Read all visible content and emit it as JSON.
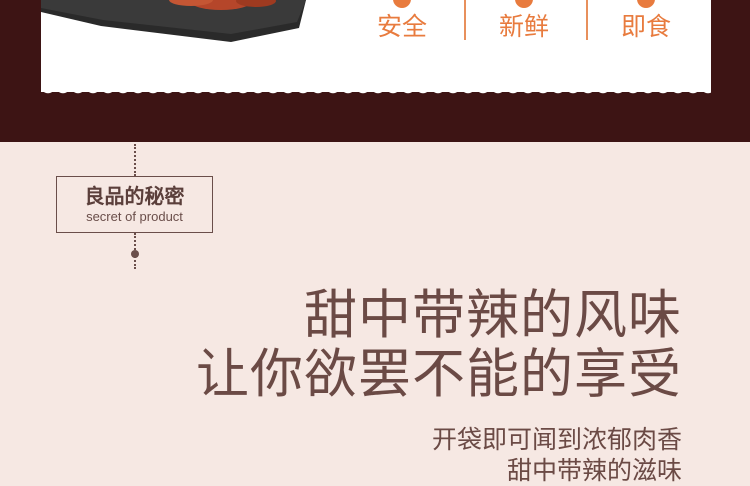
{
  "features": [
    {
      "label": "安全",
      "icon": "orange-dot-icon"
    },
    {
      "label": "新鲜",
      "icon": "orange-dot-icon"
    },
    {
      "label": "即食",
      "icon": "orange-dot-icon"
    }
  ],
  "badge": {
    "title": "良品的秘密",
    "subtitle": "secret of product"
  },
  "headline": {
    "line1": "甜中带辣的风味",
    "line2": "让你欲罢不能的享受"
  },
  "body": {
    "line1": "开袋即可闻到浓郁肉香",
    "line2": "甜中带辣的滋味"
  },
  "colors": {
    "accent": "#e87b3e",
    "dark_band": "#3d1414",
    "background": "#f6e8e3",
    "text": "#6b4a45"
  }
}
